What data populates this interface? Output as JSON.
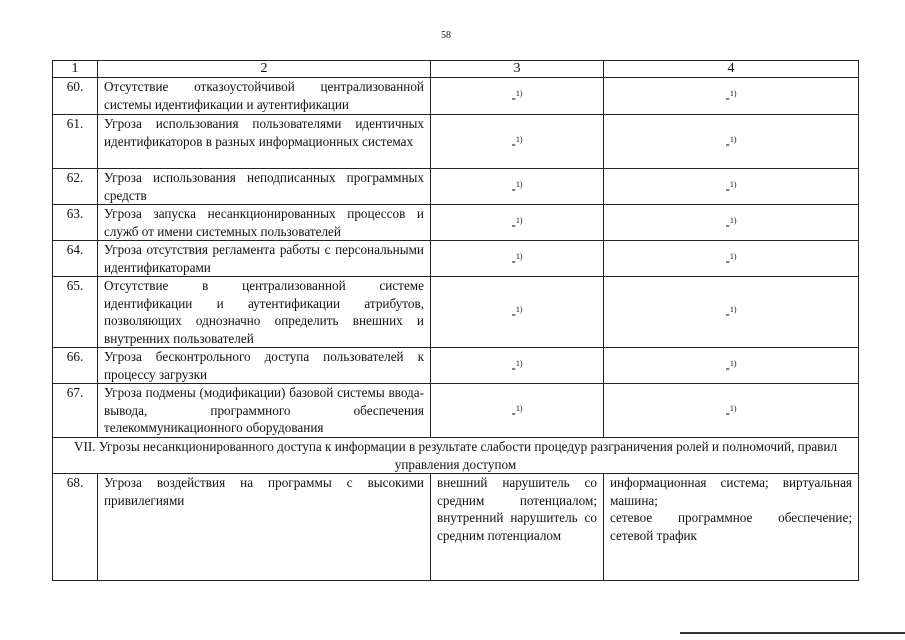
{
  "page_number": "58",
  "header": [
    "1",
    "2",
    "3",
    "4"
  ],
  "dash": "-",
  "footnote_mark": "1)",
  "rows": [
    {
      "num": "60.",
      "text": "Отсутствие отказоустойчивой централизованной системы идентификации и аутентификации"
    },
    {
      "num": "61.",
      "text": "Угроза использования пользователями идентичных идентификаторов в разных информационных системах"
    },
    {
      "num": "62.",
      "text": "Угроза использования неподписанных программных средств"
    },
    {
      "num": "63.",
      "text": "Угроза запуска несанкционированных процессов и служб от имени системных пользователей"
    },
    {
      "num": "64.",
      "text": "Угроза отсутствия регламента работы с персональными идентификаторами"
    },
    {
      "num": "65.",
      "text": "Отсутствие в централизованной системе идентификации и аутентификации атрибутов, позволяющих однозначно определить внешних и внутренних пользователей"
    },
    {
      "num": "66.",
      "text": "Угроза бесконтрольного доступа пользователей к процессу загрузки"
    },
    {
      "num": "67.",
      "text": "Угроза подмены (модификации) базовой системы ввода-вывода, программного обеспечения телекоммуникационного оборудования"
    }
  ],
  "section": "VII. Угрозы несанкционированного доступа к информации в результате слабости процедур разграничения ролей и полномочий, правил управления доступом",
  "row68": {
    "num": "68.",
    "text": "Угроза воздействия на программы с высокими привилегиями",
    "col3": "внешний нарушитель со средним потенциалом; внутренний нарушитель со средним потенциалом",
    "col4_line1": "информационная система; виртуальная машина;",
    "col4_line2": "сетевое программное обеспечение; сетевой трафик"
  }
}
